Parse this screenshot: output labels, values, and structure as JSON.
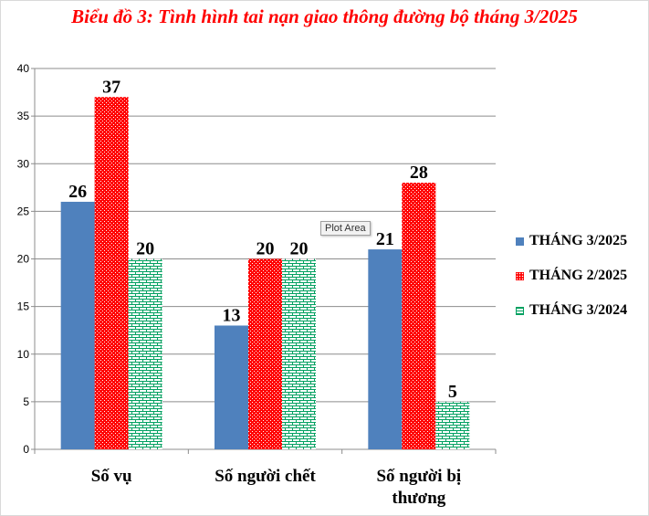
{
  "title": "Biểu đồ 3: Tình hình tai nạn giao thông đường bộ tháng 3/2025",
  "tooltip": "Plot Area",
  "chart_data": {
    "type": "bar",
    "title": "Biểu đồ 3: Tình hình tai nạn giao thông đường bộ tháng 3/2025",
    "categories": [
      "Số vụ",
      "Số người chết",
      "Số người bị thương"
    ],
    "series": [
      {
        "name": "THÁNG 3/2025",
        "values": [
          26,
          13,
          21
        ],
        "color": "#4f81bd",
        "pattern": "solid"
      },
      {
        "name": "THÁNG 2/2025",
        "values": [
          37,
          20,
          28
        ],
        "color": "#ff0000",
        "pattern": "dots"
      },
      {
        "name": "THÁNG 3/2024",
        "values": [
          20,
          20,
          5
        ],
        "color": "#00a060",
        "pattern": "bricks"
      }
    ],
    "ylim": [
      0,
      40
    ],
    "yticks": [
      0,
      5,
      10,
      15,
      20,
      25,
      30,
      35,
      40
    ],
    "xlabel": "",
    "ylabel": "",
    "grid": true,
    "legend": "right"
  }
}
